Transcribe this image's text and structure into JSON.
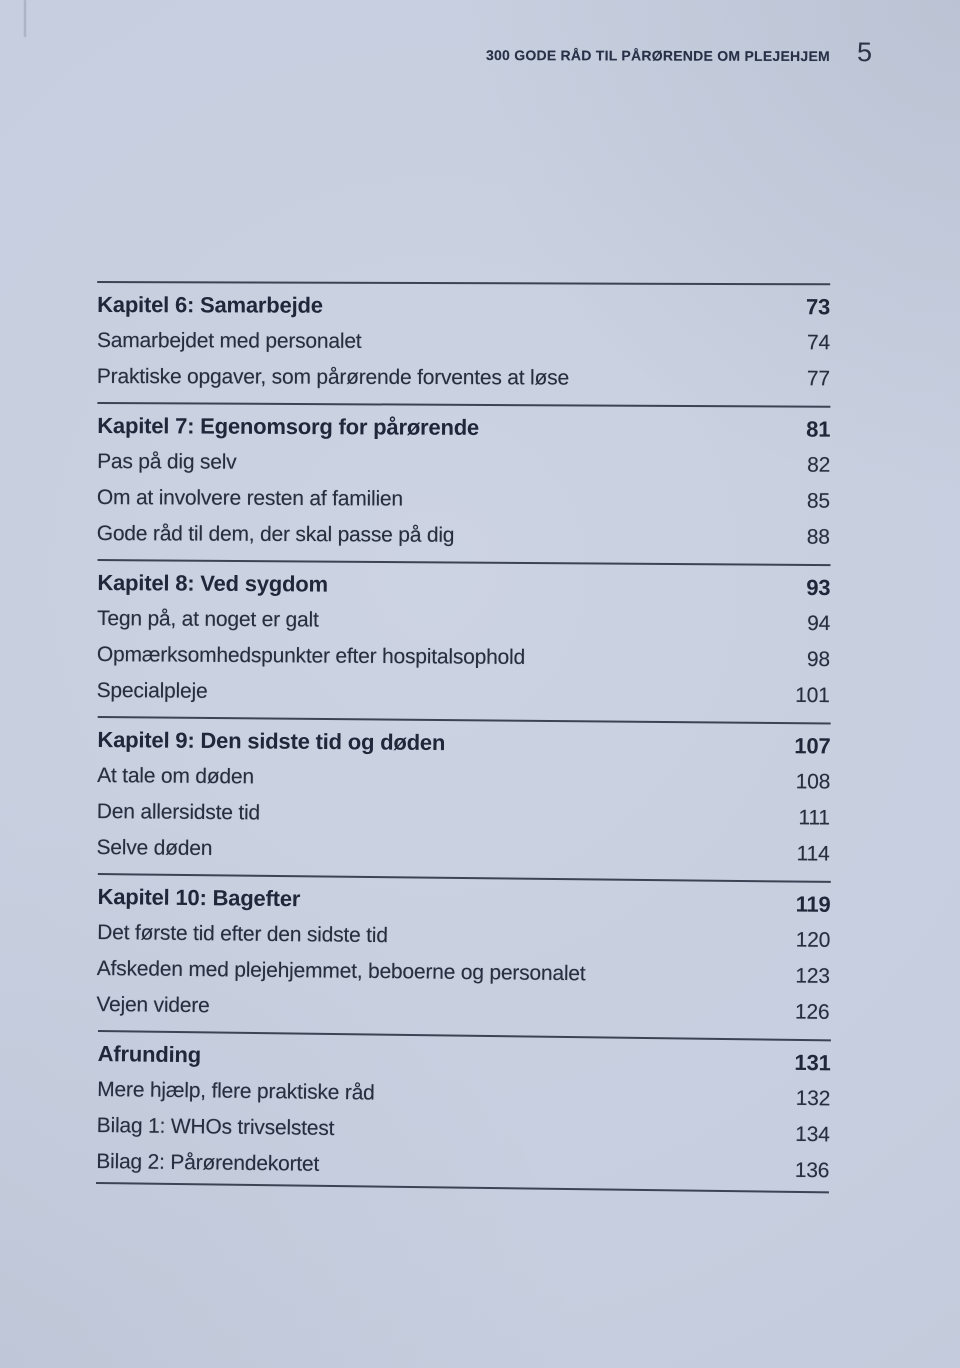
{
  "header": {
    "running_title": "300 GODE RÅD TIL PÅRØRENDE OM PLEJEHJEM",
    "page_number": "5"
  },
  "colors": {
    "paper": "#c6cedf",
    "ink": "#242b3b",
    "rule": "#3c4354"
  },
  "toc": {
    "sections": [
      {
        "chapter": {
          "label": "Kapitel 6: Samarbejde",
          "page": "73"
        },
        "items": [
          {
            "label": "Samarbejdet med personalet",
            "page": "74"
          },
          {
            "label": "Praktiske opgaver, som pårørende forventes at løse",
            "page": "77"
          }
        ]
      },
      {
        "chapter": {
          "label": "Kapitel 7: Egenomsorg for pårørende",
          "page": "81"
        },
        "items": [
          {
            "label": "Pas på dig selv",
            "page": "82"
          },
          {
            "label": "Om at involvere resten af familien",
            "page": "85"
          },
          {
            "label": "Gode råd til dem, der skal passe på dig",
            "page": "88"
          }
        ]
      },
      {
        "chapter": {
          "label": "Kapitel 8: Ved sygdom",
          "page": "93"
        },
        "items": [
          {
            "label": "Tegn på, at noget er galt",
            "page": "94"
          },
          {
            "label": "Opmærksomhedspunkter efter hospitalsophold",
            "page": "98"
          },
          {
            "label": "Specialpleje",
            "page": "101"
          }
        ]
      },
      {
        "chapter": {
          "label": "Kapitel 9: Den sidste tid og døden",
          "page": "107"
        },
        "items": [
          {
            "label": "At tale om døden",
            "page": "108"
          },
          {
            "label": "Den allersidste tid",
            "page": "111"
          },
          {
            "label": "Selve døden",
            "page": "114"
          }
        ]
      },
      {
        "chapter": {
          "label": "Kapitel 10: Bagefter",
          "page": "119"
        },
        "items": [
          {
            "label": "Det første tid efter den sidste tid",
            "page": "120"
          },
          {
            "label": "Afskeden med plejehjemmet, beboerne og personalet",
            "page": "123"
          },
          {
            "label": "Vejen videre",
            "page": "126"
          }
        ]
      },
      {
        "chapter": {
          "label": "Afrunding",
          "page": "131"
        },
        "items": [
          {
            "label": "Mere hjælp, flere praktiske råd",
            "page": "132"
          },
          {
            "label": "Bilag 1: WHOs trivselstest",
            "page": "134"
          },
          {
            "label": "Bilag 2: Pårørendekortet",
            "page": "136"
          }
        ]
      }
    ]
  }
}
